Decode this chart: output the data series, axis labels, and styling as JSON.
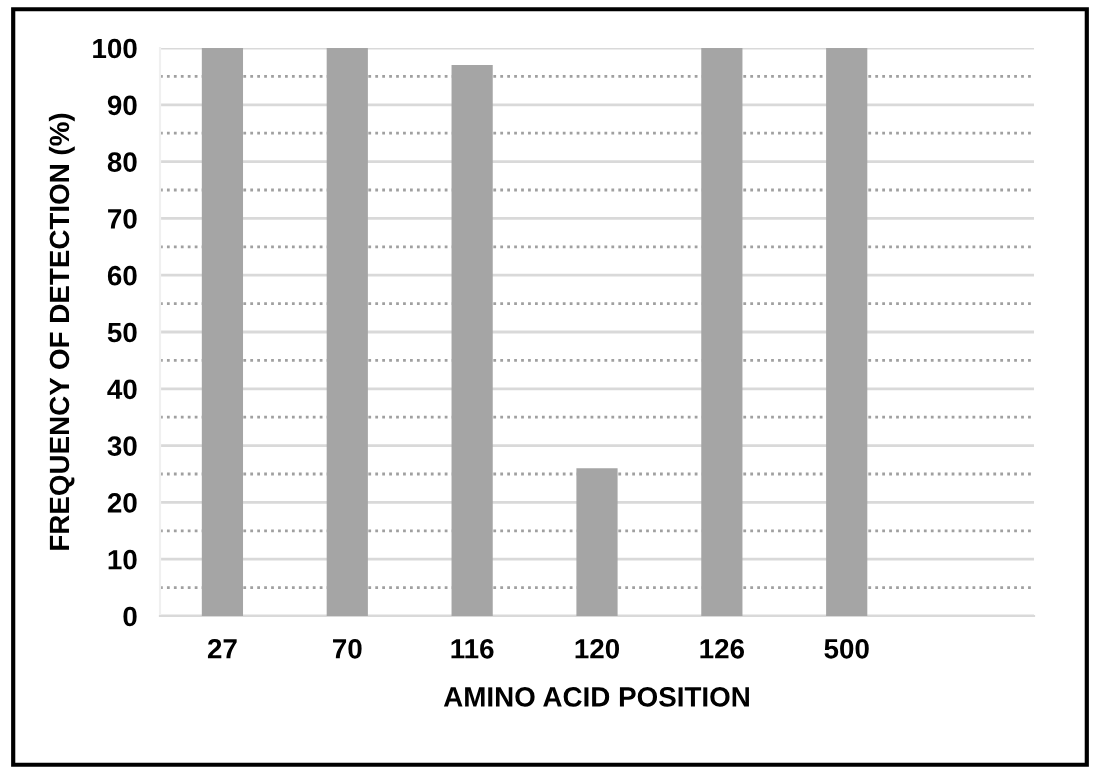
{
  "chart_data": {
    "type": "bar",
    "xlabel": "AMINO ACID POSITION",
    "ylabel": "FREQUENCY OF DETECTION (%)",
    "categories": [
      "27",
      "70",
      "116",
      "120",
      "126",
      "500",
      null
    ],
    "values": [
      100,
      100,
      97,
      26,
      100,
      100,
      null
    ],
    "color": "#a5a5a5",
    "ylim": [
      0,
      100
    ],
    "yticks": [
      0,
      {
        "value": 5,
        "label": null
      },
      10,
      {
        "value": 15,
        "label": null
      },
      20,
      {
        "value": 25,
        "label": null
      },
      30,
      {
        "value": 35,
        "label": null
      },
      40,
      {
        "value": 45,
        "label": null
      },
      50,
      {
        "value": 55,
        "label": null
      },
      60,
      {
        "value": 65,
        "label": null
      },
      70,
      {
        "value": 75,
        "label": null
      },
      80,
      {
        "value": 85,
        "label": null
      },
      90,
      {
        "value": 95,
        "label": null
      },
      100
    ],
    "grid": "y"
  }
}
